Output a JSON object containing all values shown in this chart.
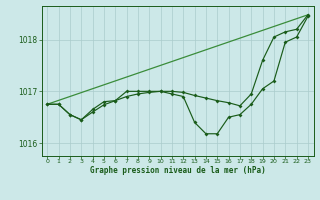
{
  "background_color": "#cce8e8",
  "grid_color": "#aacccc",
  "line_color_dark": "#1a5c1a",
  "line_color_light": "#3a8c3a",
  "xlabel": "Graphe pression niveau de la mer (hPa)",
  "ylim": [
    1015.75,
    1018.65
  ],
  "xlim": [
    -0.5,
    23.5
  ],
  "yticks": [
    1016,
    1017,
    1018
  ],
  "xticks": [
    0,
    1,
    2,
    3,
    4,
    5,
    6,
    7,
    8,
    9,
    10,
    11,
    12,
    13,
    14,
    15,
    16,
    17,
    18,
    19,
    20,
    21,
    22,
    23
  ],
  "line1_x": [
    0,
    1,
    2,
    3,
    4,
    5,
    6,
    7,
    8,
    9,
    10,
    11,
    12,
    13,
    14,
    15,
    16,
    17,
    18,
    19,
    20,
    21,
    22,
    23
  ],
  "line1_y": [
    1016.75,
    1016.75,
    1016.55,
    1016.45,
    1016.65,
    1016.8,
    1016.82,
    1017.0,
    1017.0,
    1017.0,
    1017.0,
    1016.95,
    1016.9,
    1016.4,
    1016.18,
    1016.18,
    1016.5,
    1016.55,
    1016.75,
    1017.05,
    1017.2,
    1017.95,
    1018.05,
    1018.45
  ],
  "line2_x": [
    0,
    1,
    2,
    3,
    4,
    5,
    6,
    7,
    8,
    9,
    10,
    11,
    12,
    13,
    14,
    15,
    16,
    17,
    18,
    19,
    20,
    21,
    22,
    23
  ],
  "line2_y": [
    1016.75,
    1016.75,
    1016.55,
    1016.45,
    1016.6,
    1016.74,
    1016.82,
    1016.9,
    1016.95,
    1016.98,
    1017.0,
    1017.0,
    1016.98,
    1016.92,
    1016.87,
    1016.82,
    1016.78,
    1016.72,
    1016.95,
    1017.6,
    1018.05,
    1018.15,
    1018.2,
    1018.48
  ],
  "line3_x": [
    0,
    23
  ],
  "line3_y": [
    1016.75,
    1018.48
  ]
}
